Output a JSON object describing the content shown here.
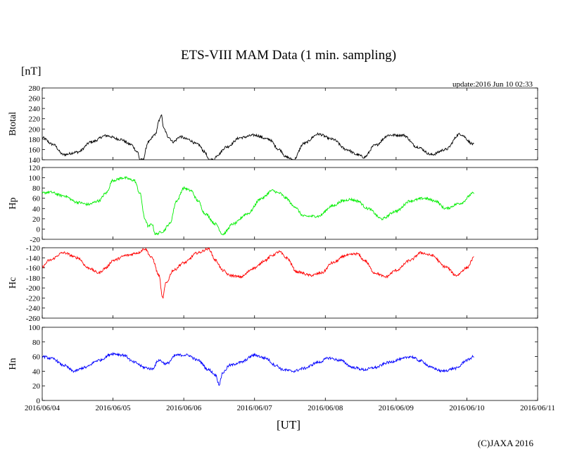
{
  "chart_data": {
    "type": "line",
    "title": "ETS-VIII MAM Data (1 min. sampling)",
    "y_unit": "[nT]",
    "update_text": "update:2016 Jun 10 02:33",
    "xlabel": "[UT]",
    "copyright": "(C)JAXA 2016",
    "x_ticks": [
      "2016/06/04",
      "2016/06/05",
      "2016/06/06",
      "2016/06/07",
      "2016/06/08",
      "2016/06/09",
      "2016/06/10",
      "2016/06/11"
    ],
    "xlim": [
      0,
      7
    ],
    "panels": [
      {
        "name": "Btotal",
        "ylabel": "Btotal",
        "color": "#000000",
        "ylim": [
          140,
          280
        ],
        "yticks": [
          "140",
          "160",
          "180",
          "200",
          "220",
          "240",
          "260",
          "280"
        ],
        "x": [
          0,
          0.15,
          0.3,
          0.5,
          0.7,
          0.9,
          1.1,
          1.25,
          1.35,
          1.38,
          1.42,
          1.5,
          1.6,
          1.65,
          1.68,
          1.72,
          1.78,
          1.85,
          1.95,
          2.05,
          2.2,
          2.3,
          2.35,
          2.42,
          2.48,
          2.6,
          2.8,
          3.0,
          3.2,
          3.35,
          3.45,
          3.55,
          3.7,
          3.9,
          4.1,
          4.3,
          4.45,
          4.55,
          4.7,
          4.9,
          5.1,
          5.3,
          5.5,
          5.7,
          5.9,
          6.1
        ],
        "values": [
          183,
          170,
          150,
          155,
          175,
          187,
          180,
          170,
          155,
          140,
          140,
          175,
          190,
          215,
          228,
          200,
          185,
          175,
          185,
          180,
          170,
          155,
          140,
          140,
          150,
          165,
          183,
          188,
          180,
          160,
          145,
          140,
          172,
          190,
          180,
          160,
          150,
          145,
          168,
          188,
          188,
          165,
          150,
          160,
          190,
          170
        ]
      },
      {
        "name": "Hp",
        "ylabel": "Hp",
        "color": "#00ee00",
        "ylim": [
          -20,
          120
        ],
        "yticks": [
          "-20",
          "0",
          "20",
          "40",
          "60",
          "80",
          "100",
          "120"
        ],
        "x": [
          0,
          0.1,
          0.3,
          0.5,
          0.65,
          0.8,
          0.9,
          1.0,
          1.15,
          1.3,
          1.38,
          1.45,
          1.5,
          1.55,
          1.6,
          1.7,
          1.8,
          1.9,
          2.0,
          2.1,
          2.2,
          2.3,
          2.45,
          2.55,
          2.7,
          2.9,
          3.1,
          3.25,
          3.35,
          3.45,
          3.55,
          3.7,
          3.9,
          4.1,
          4.25,
          4.35,
          4.45,
          4.6,
          4.8,
          5.0,
          5.2,
          5.4,
          5.55,
          5.7,
          5.9,
          6.1
        ],
        "values": [
          70,
          72,
          65,
          52,
          48,
          55,
          70,
          95,
          100,
          95,
          70,
          20,
          5,
          10,
          -10,
          -5,
          10,
          55,
          80,
          75,
          55,
          30,
          10,
          -10,
          10,
          30,
          60,
          75,
          70,
          60,
          45,
          25,
          25,
          45,
          55,
          58,
          55,
          40,
          20,
          35,
          55,
          60,
          55,
          40,
          50,
          70
        ]
      },
      {
        "name": "Hc",
        "ylabel": "Hc",
        "color": "#ff0000",
        "ylim": [
          -260,
          -120
        ],
        "yticks": [
          "-260",
          "-240",
          "-220",
          "-200",
          "-180",
          "-160",
          "-140",
          "-120"
        ],
        "x": [
          0,
          0.1,
          0.3,
          0.5,
          0.65,
          0.8,
          0.9,
          1.0,
          1.2,
          1.35,
          1.45,
          1.55,
          1.65,
          1.7,
          1.75,
          1.85,
          2.0,
          2.2,
          2.35,
          2.45,
          2.55,
          2.65,
          2.8,
          3.0,
          3.15,
          3.25,
          3.35,
          3.45,
          3.6,
          3.8,
          3.95,
          4.1,
          4.3,
          4.45,
          4.55,
          4.7,
          4.85,
          5.0,
          5.2,
          5.35,
          5.5,
          5.7,
          5.85,
          6.0,
          6.1
        ],
        "values": [
          -158,
          -145,
          -130,
          -140,
          -160,
          -170,
          -160,
          -145,
          -135,
          -130,
          -122,
          -140,
          -175,
          -220,
          -190,
          -165,
          -150,
          -130,
          -122,
          -145,
          -165,
          -175,
          -178,
          -160,
          -145,
          -135,
          -128,
          -140,
          -168,
          -175,
          -170,
          -150,
          -135,
          -132,
          -145,
          -170,
          -178,
          -165,
          -145,
          -130,
          -135,
          -158,
          -175,
          -160,
          -140
        ]
      },
      {
        "name": "Hn",
        "ylabel": "Hn",
        "color": "#0000ff",
        "ylim": [
          0,
          100
        ],
        "yticks": [
          "0",
          "20",
          "40",
          "60",
          "80",
          "100"
        ],
        "x": [
          0,
          0.15,
          0.3,
          0.45,
          0.6,
          0.8,
          1.0,
          1.15,
          1.3,
          1.45,
          1.55,
          1.65,
          1.75,
          1.9,
          2.05,
          2.2,
          2.35,
          2.45,
          2.5,
          2.55,
          2.65,
          2.8,
          3.0,
          3.15,
          3.3,
          3.4,
          3.55,
          3.7,
          3.9,
          4.05,
          4.2,
          4.4,
          4.55,
          4.7,
          4.9,
          5.05,
          5.2,
          5.35,
          5.5,
          5.65,
          5.85,
          6.0,
          6.1
        ],
        "values": [
          60,
          57,
          48,
          40,
          45,
          55,
          64,
          62,
          52,
          45,
          43,
          55,
          50,
          62,
          62,
          55,
          42,
          35,
          22,
          38,
          48,
          52,
          62,
          58,
          48,
          42,
          40,
          44,
          52,
          58,
          55,
          45,
          42,
          45,
          52,
          56,
          60,
          54,
          45,
          40,
          44,
          55,
          60
        ]
      }
    ]
  }
}
